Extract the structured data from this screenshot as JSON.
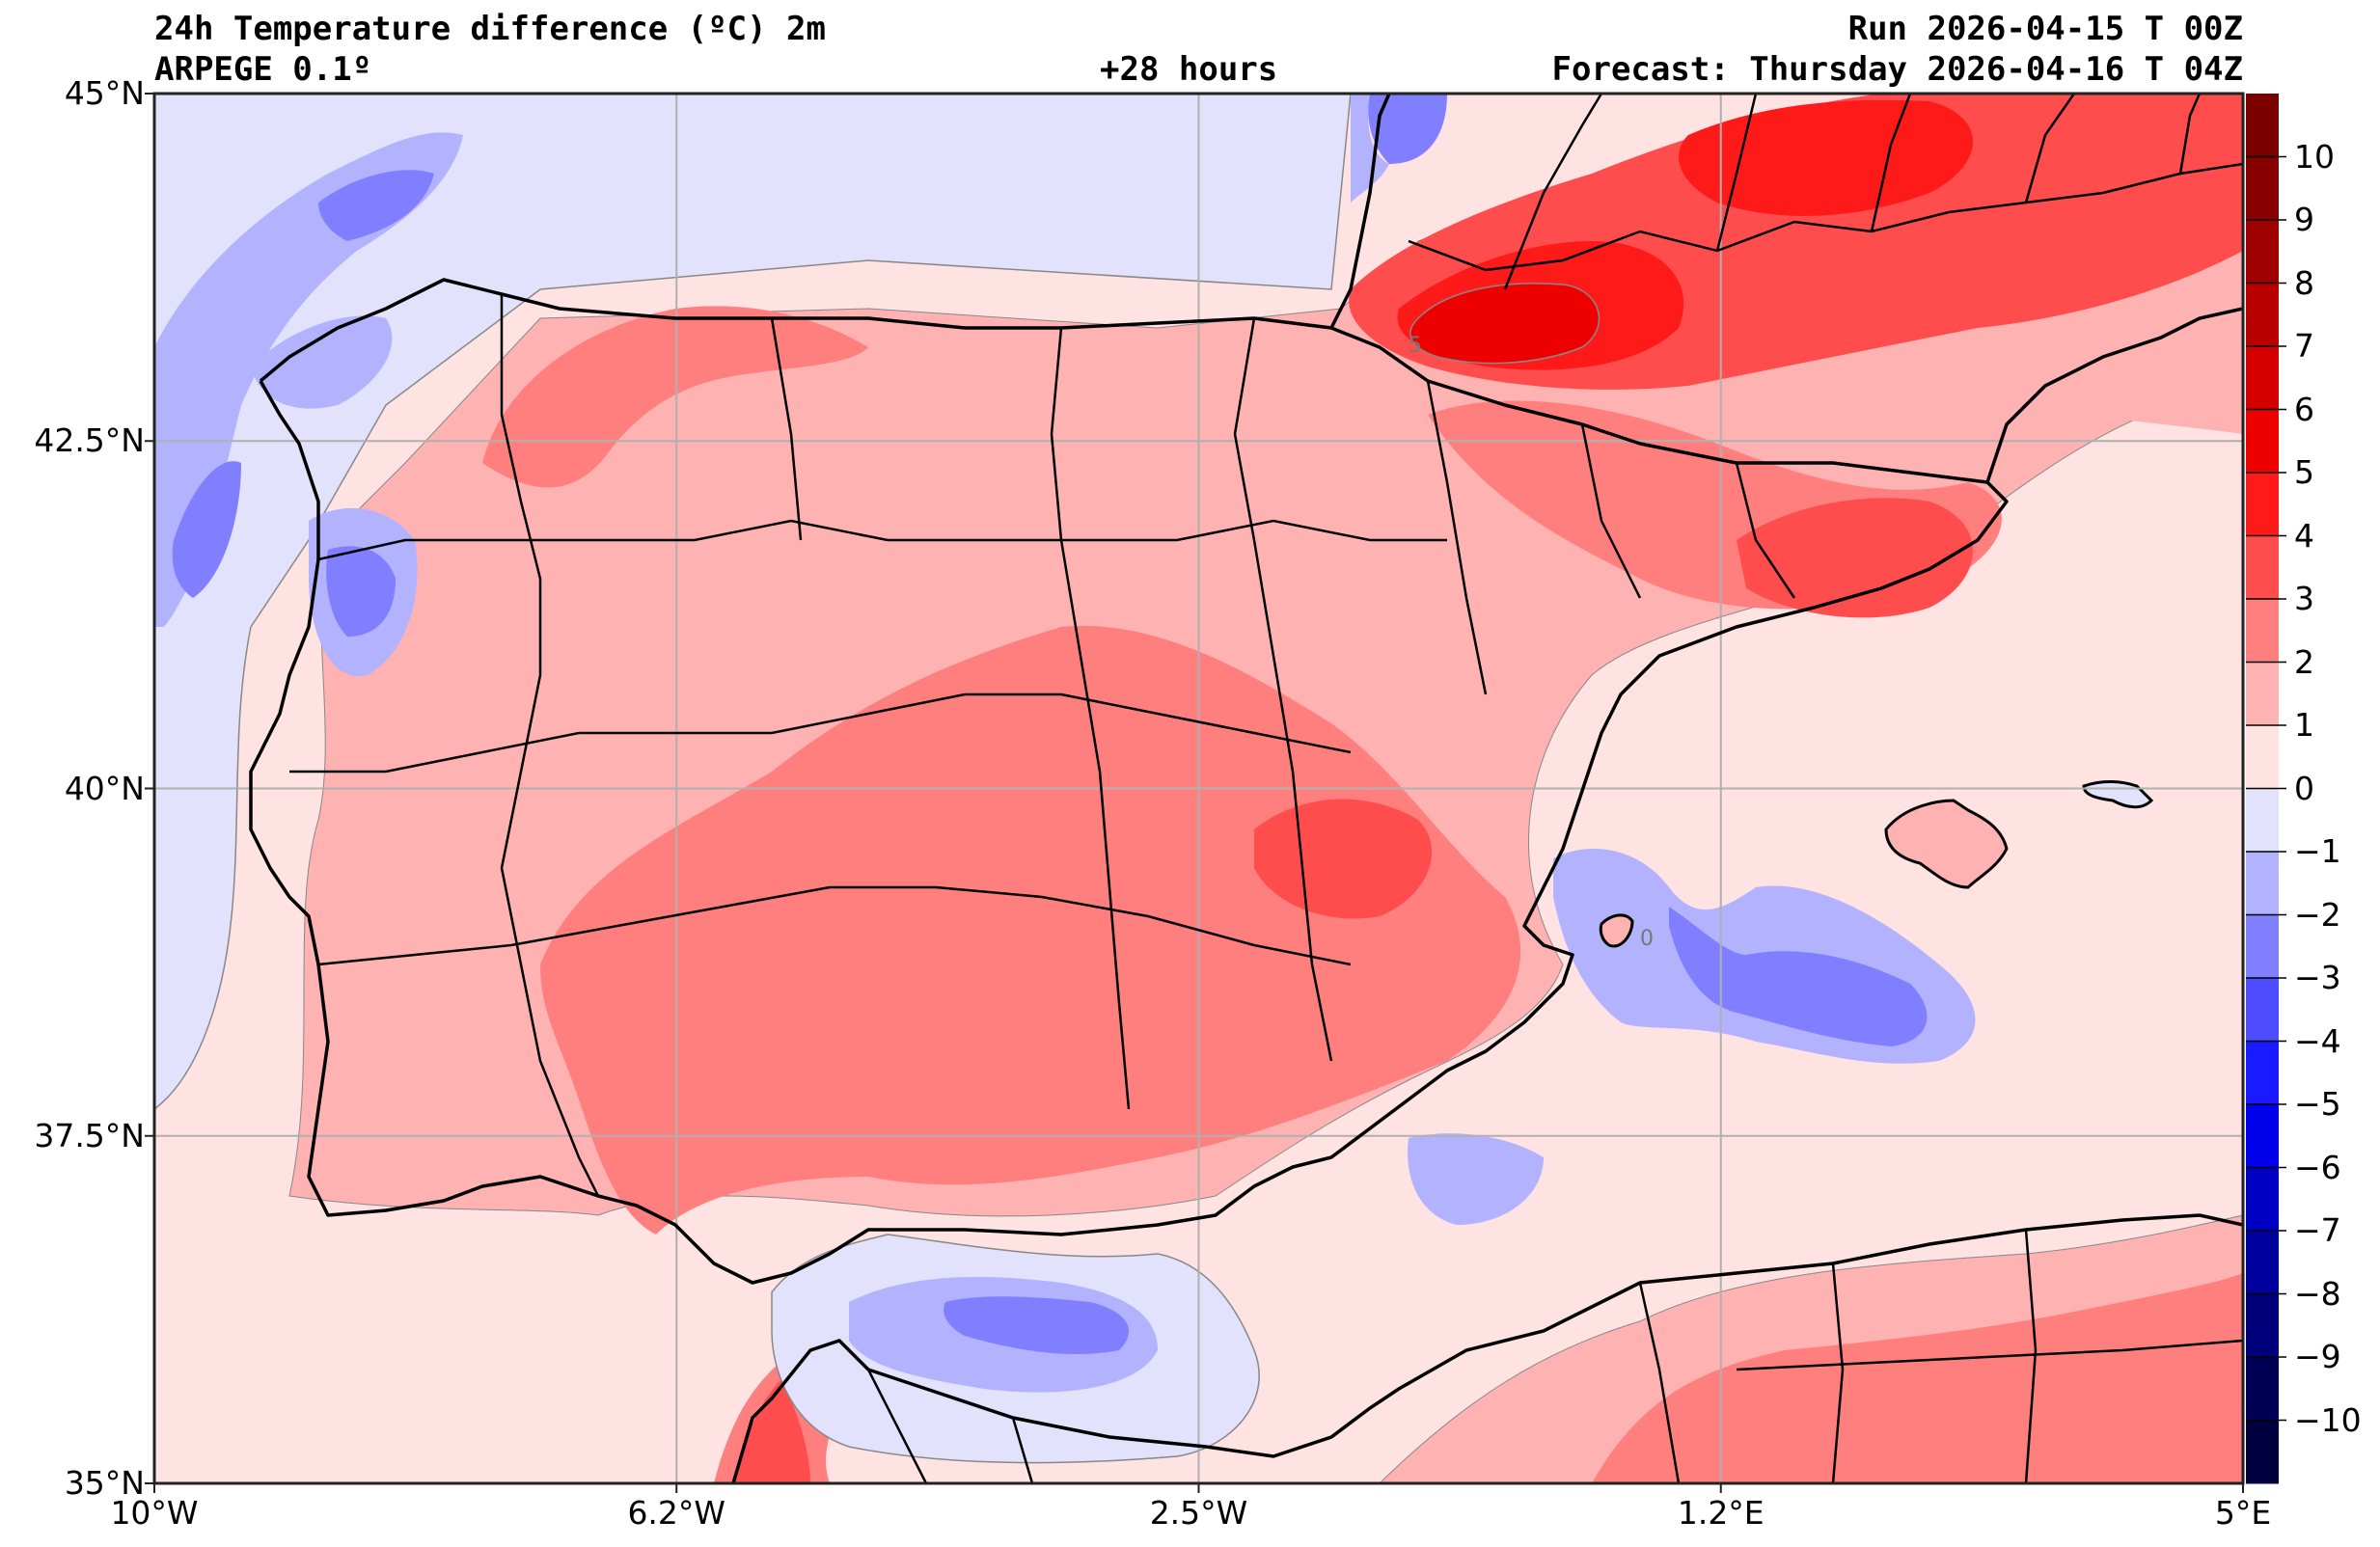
{
  "header": {
    "title": "24h Temperature difference (ºC) 2m",
    "model": "ARPEGE 0.1º",
    "lead_time": "+28 hours",
    "run": "Run 2026-04-15 T 00Z",
    "forecast": "Forecast: Thursday 2026-04-16 T 04Z"
  },
  "map": {
    "region": "Iberian Peninsula, Balearic Islands, southern France, northern Morocco/Algeria",
    "extent": {
      "lon_min": -10,
      "lon_max": 5,
      "lat_min": 35,
      "lat_max": 45
    },
    "lat_ticks": [
      {
        "value": 45,
        "label": "45°N"
      },
      {
        "value": 42.5,
        "label": "42.5°N"
      },
      {
        "value": 40,
        "label": "40°N"
      },
      {
        "value": 37.5,
        "label": "37.5°N"
      },
      {
        "value": 35,
        "label": "35°N"
      }
    ],
    "lon_ticks": [
      {
        "value": -10,
        "label": "10°W"
      },
      {
        "value": -6.25,
        "label": "6.2°W"
      },
      {
        "value": -2.5,
        "label": "2.5°W"
      },
      {
        "value": 1.25,
        "label": "1.2°E"
      },
      {
        "value": 5,
        "label": "5°E"
      }
    ],
    "contour_label": "5",
    "zero_contour_label": "0",
    "gridlines": true
  },
  "colorbar": {
    "unit": "ºC",
    "levels": [
      {
        "from": -11,
        "to": -10,
        "color": "#00003f"
      },
      {
        "from": -10,
        "to": -9,
        "color": "#000055"
      },
      {
        "from": -9,
        "to": -8,
        "color": "#00007a"
      },
      {
        "from": -8,
        "to": -7,
        "color": "#00009f"
      },
      {
        "from": -7,
        "to": -6,
        "color": "#0000c4"
      },
      {
        "from": -6,
        "to": -5,
        "color": "#0000ea"
      },
      {
        "from": -5,
        "to": -4,
        "color": "#1a1aff"
      },
      {
        "from": -4,
        "to": -3,
        "color": "#4d4dff"
      },
      {
        "from": -3,
        "to": -2,
        "color": "#7f7fff"
      },
      {
        "from": -2,
        "to": -1,
        "color": "#b2b2ff"
      },
      {
        "from": -1,
        "to": 0,
        "color": "#e2e2fc"
      },
      {
        "from": 0,
        "to": 1,
        "color": "#ffe2e2"
      },
      {
        "from": 1,
        "to": 2,
        "color": "#ffb2b2"
      },
      {
        "from": 2,
        "to": 3,
        "color": "#ff7f7f"
      },
      {
        "from": 3,
        "to": 4,
        "color": "#ff4d4d"
      },
      {
        "from": 4,
        "to": 5,
        "color": "#ff1a1a"
      },
      {
        "from": 5,
        "to": 6,
        "color": "#ee0000"
      },
      {
        "from": 6,
        "to": 7,
        "color": "#d40000"
      },
      {
        "from": 7,
        "to": 8,
        "color": "#b90000"
      },
      {
        "from": 8,
        "to": 9,
        "color": "#9f0000"
      },
      {
        "from": 9,
        "to": 10,
        "color": "#870000"
      },
      {
        "from": 10,
        "to": 11,
        "color": "#7a0000"
      }
    ],
    "tick_labels": [
      "10",
      "9",
      "8",
      "7",
      "6",
      "5",
      "4",
      "3",
      "2",
      "1",
      "0",
      "−1",
      "−2",
      "−3",
      "−4",
      "−5",
      "−6",
      "−7",
      "−8",
      "−9",
      "−10"
    ]
  }
}
